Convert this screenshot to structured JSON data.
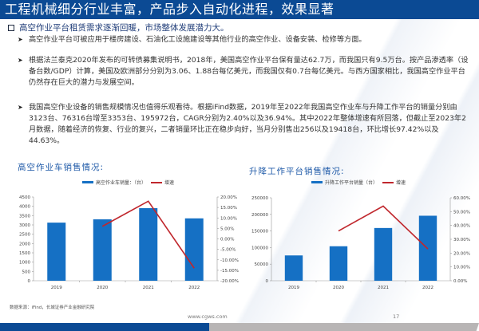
{
  "header": {
    "title": "工程机械细分行业丰富，产品步入自动化进程，效果显著"
  },
  "section": {
    "heading": "高空作业平台租赁需求逐渐回暖，市场整体发展潜力大。"
  },
  "bullets": [
    {
      "text": "高空作业平台可被应用于楼房建设、石油化工设施建设等其他行业的高空作业、设备安装、检修等方面。"
    },
    {
      "text": "根据法兰泰克2020年发布的可转债募集说明书，2018年，美国高空作业平台保有量达62.7万，而我国只有9.5万台。按产品渗透率（设备台数/GDP）计算，美国及欧洲部分分别为3.06、1.88台每亿美元，而我国仅有0.7台每亿美元。与西方国家相比，我国高空作业平台仍然存在巨大的潜力与发展空间。"
    },
    {
      "text": "我国高空作业设备的销售规模情况也值得乐观看待。根据iFind数据，2019年至2022年我国高空作业车与升降工作平台的销量分别由3123台、76316台增至3353台、195972台，CAGR分别为2.40%以及36.94%。其中2022年整体增速有所回落，但截止至2023年2月数据，随着经济的恢复、行业的复兴，二者销量环比正在稳步向好，当月分别售出256以及19418台，环比增长97.42%以及44.63%。"
    }
  ],
  "colors": {
    "header_bg": "#0b4a94",
    "bar": "#1570c4",
    "line": "#c0272d",
    "title_text": "#1f5aa8"
  },
  "chart_data": [
    {
      "type": "bar",
      "title": "高空作业车销售情况:",
      "categories": [
        "2019",
        "2020",
        "2021",
        "2022"
      ],
      "series": [
        {
          "name": "高空作业车销量：（台）",
          "type": "bar",
          "axis": "left",
          "values": [
            3123,
            3300,
            3900,
            3353
          ]
        },
        {
          "name": "增速",
          "type": "line",
          "axis": "right",
          "values": [
            null,
            6.0,
            18.0,
            -14.0
          ]
        }
      ],
      "y_left": {
        "min": 0,
        "max": 4500,
        "ticks": [
          "0",
          "500",
          "1000",
          "1500",
          "2000",
          "2500",
          "3000",
          "3500",
          "4000",
          "4500"
        ]
      },
      "y_right": {
        "min": -20,
        "max": 20,
        "ticks": [
          "-20.00%",
          "-15.00%",
          "-10.00%",
          "-5.00%",
          "0.00%",
          "5.00%",
          "10.00%",
          "15.00%",
          "20.00%"
        ]
      },
      "legend_position": "top",
      "grid": false
    },
    {
      "type": "bar",
      "title": "升降工作平台销售情况:",
      "categories": [
        "2019",
        "2020",
        "2021",
        "2022"
      ],
      "series": [
        {
          "name": "升降工作平台销量（台）",
          "type": "bar",
          "axis": "left",
          "values": [
            76316,
            104000,
            159000,
            195972
          ]
        },
        {
          "name": "增速",
          "type": "line",
          "axis": "right",
          "values": [
            null,
            36.0,
            54.0,
            23.0
          ]
        }
      ],
      "y_left": {
        "min": 0,
        "max": 250000,
        "ticks": [
          "0",
          "50000",
          "100000",
          "150000",
          "200000",
          "250000"
        ]
      },
      "y_right": {
        "min": 0,
        "max": 60,
        "ticks": [
          "0.00%",
          "10.00%",
          "20.00%",
          "30.00%",
          "40.00%",
          "50.00%",
          "60.00%"
        ]
      },
      "legend_position": "top",
      "grid": false
    }
  ],
  "footer": {
    "source": "数据来源：iFind，长城证券产业金融研究院",
    "site": "www.cgws.com",
    "page": "17"
  }
}
